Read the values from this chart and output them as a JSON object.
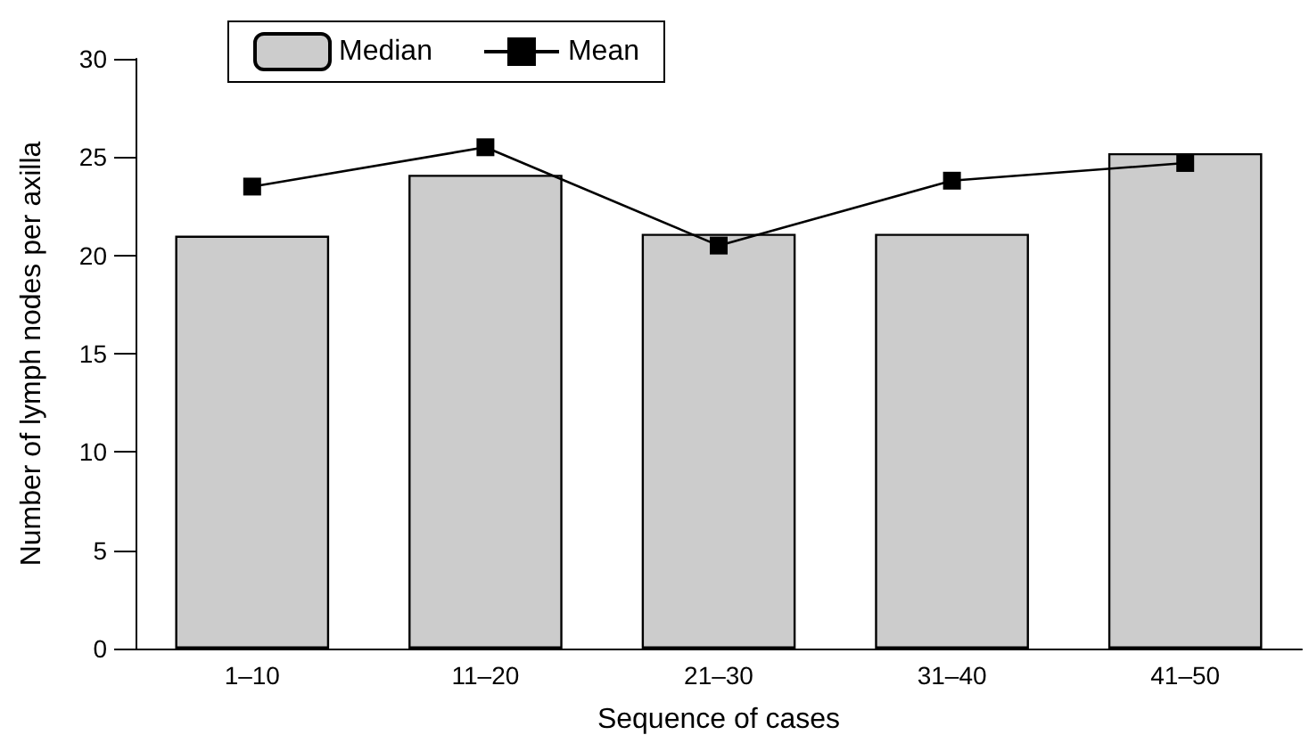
{
  "chart_data": {
    "type": "bar",
    "xlabel": "Sequence of cases",
    "ylabel": "Number of lymph nodes per axilla",
    "categories": [
      "1–10",
      "11–20",
      "21–30",
      "31–40",
      "41–50"
    ],
    "series": [
      {
        "name": "Median",
        "color": "#cccccc",
        "values": [
          21,
          24.1,
          21.1,
          21.1,
          25.2
        ]
      },
      {
        "name": "Mean",
        "type": "line",
        "color": "#000000",
        "values": [
          23.5,
          25.5,
          20.5,
          23.8,
          24.7
        ],
        "marker": "square",
        "line_style": "solid"
      }
    ],
    "ylim": [
      0,
      30
    ],
    "yticks": [
      0,
      5,
      10,
      15,
      20,
      25,
      30
    ],
    "grid": false,
    "legend": "top left"
  }
}
